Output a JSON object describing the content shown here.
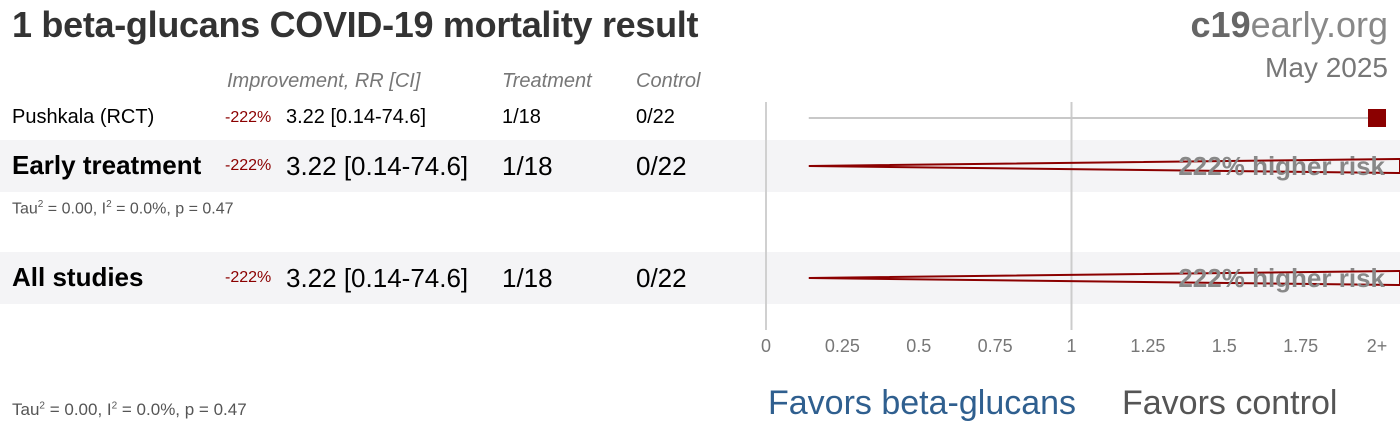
{
  "title": "1 beta-glucans COVID-19 mortality result",
  "brand": {
    "bold": "c19",
    "rest": "early.org"
  },
  "date": "May 2025",
  "headers": {
    "improvement": "Improvement, RR [CI]",
    "treatment": "Treatment",
    "control": "Control"
  },
  "rows": [
    {
      "label": "Pushkala (RCT)",
      "improvement": "-222%",
      "rr_ci": "3.22 [0.14-74.6]",
      "treatment": "1/18",
      "control": "0/22"
    },
    {
      "label": "Early treatment",
      "improvement": "-222%",
      "rr_ci": "3.22 [0.14-74.6]",
      "treatment": "1/18",
      "control": "0/22",
      "risk_text": "222% higher risk"
    },
    {
      "label": "All studies",
      "improvement": "-222%",
      "rr_ci": "3.22 [0.14-74.6]",
      "treatment": "1/18",
      "control": "0/22",
      "risk_text": "222% higher risk"
    }
  ],
  "heterogeneity": {
    "tau_prefix": "Tau",
    "tau_rest": " = 0.00, I",
    "i_rest": " = 0.0%, p = 0.47",
    "exp": "2"
  },
  "favors": {
    "left": "Favors beta-glucans",
    "right": "Favors control"
  },
  "colors": {
    "marker": "#8b0000",
    "favors_left": "#2f5f8f",
    "favors_right": "#555555"
  },
  "chart_data": {
    "type": "forest",
    "xlim": [
      0,
      2
    ],
    "xticks": [
      0,
      0.25,
      0.5,
      0.75,
      1,
      1.25,
      1.5,
      1.75,
      2
    ],
    "xtick_labels": [
      "0",
      "0.25",
      "0.5",
      "0.75",
      "1",
      "1.25",
      "1.5",
      "1.75",
      "2+"
    ],
    "reference": 1,
    "studies": [
      {
        "name": "Pushkala (RCT)",
        "rr": 3.22,
        "lower": 0.14,
        "upper": 74.6,
        "kind": "study"
      },
      {
        "name": "Early treatment",
        "rr": 3.22,
        "lower": 0.14,
        "upper": 74.6,
        "kind": "pooled"
      },
      {
        "name": "All studies",
        "rr": 3.22,
        "lower": 0.14,
        "upper": 74.6,
        "kind": "pooled"
      }
    ]
  }
}
